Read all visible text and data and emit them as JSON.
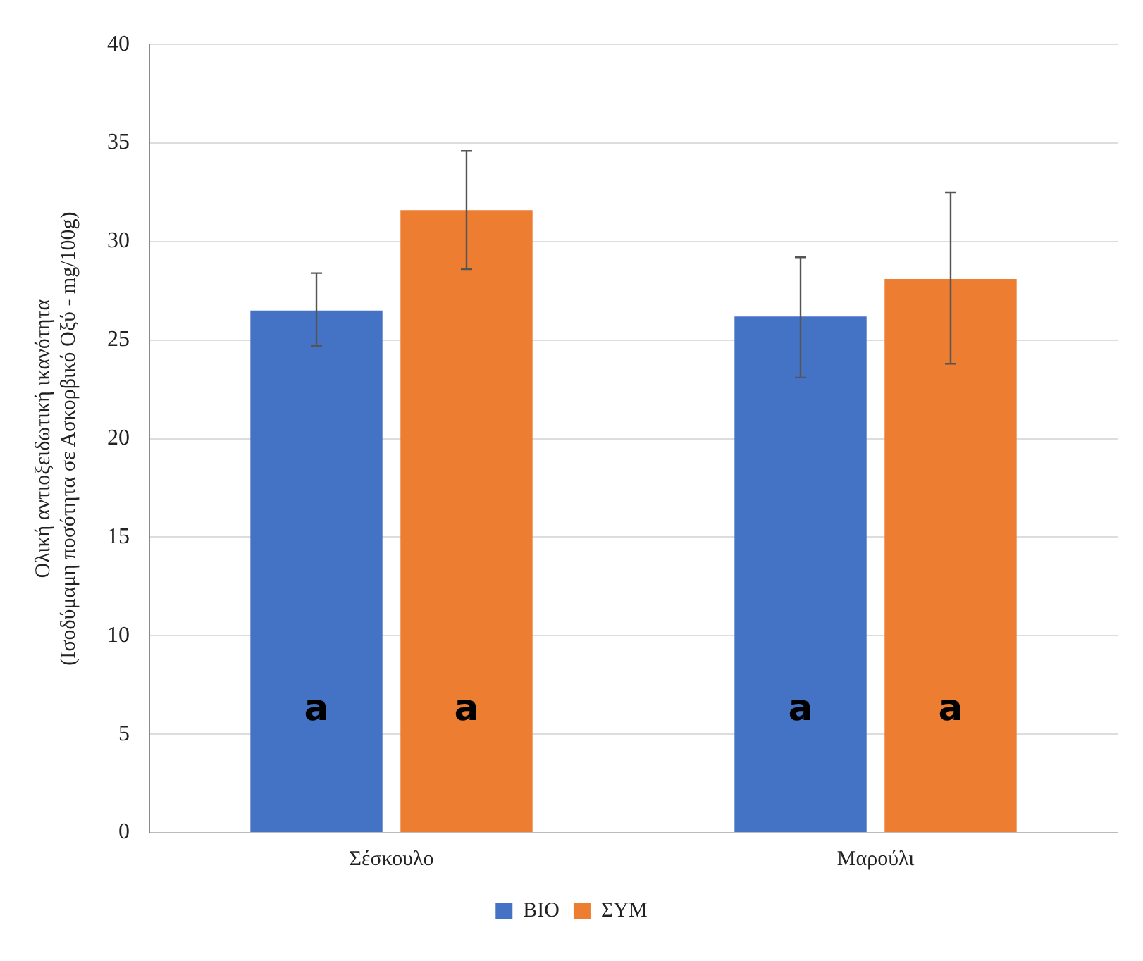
{
  "chart_data": {
    "type": "bar",
    "ylabel": "Ολική αντιοξειδωτική ικανότητα\n(Ισοδύμαμη ποσότητα σε Ασκορβικό Οξύ - mg/100g)",
    "categories": [
      "Σέσκουλο",
      "Μαρούλι"
    ],
    "series": [
      {
        "name": "ΒΙΟ",
        "color": "#4472c4",
        "values": [
          26.5,
          26.2
        ],
        "errors": [
          [
            24.7,
            28.4
          ],
          [
            23.1,
            29.2
          ]
        ]
      },
      {
        "name": "ΣΥΜ",
        "color": "#ed7d31",
        "values": [
          31.6,
          28.1
        ],
        "errors": [
          [
            28.6,
            34.6
          ],
          [
            23.8,
            32.5
          ]
        ]
      }
    ],
    "annotations": [
      "a",
      "a",
      "a",
      "a"
    ],
    "ylim": [
      0,
      40
    ],
    "yticks": [
      0,
      5,
      10,
      15,
      20,
      25,
      30,
      35,
      40
    ],
    "grid": "y",
    "legend": "bottom"
  }
}
